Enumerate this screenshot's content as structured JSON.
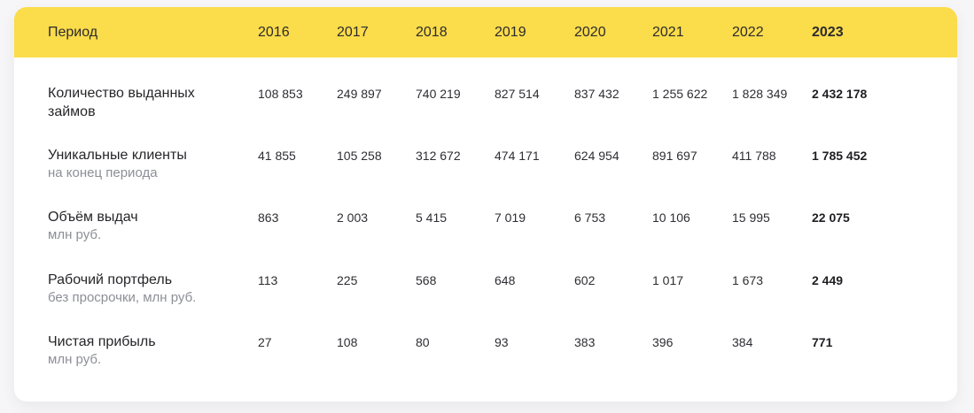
{
  "table": {
    "headers": [
      "Период",
      "2016",
      "2017",
      "2018",
      "2019",
      "2020",
      "2021",
      "2022",
      "2023"
    ],
    "rows": [
      {
        "title_lines": [
          "Количество выданных",
          "займов"
        ],
        "subtitle": "",
        "values": [
          "108 853",
          "249 897",
          "740 219",
          "827 514",
          "837 432",
          "1 255 622",
          "1 828 349",
          "2 432 178"
        ]
      },
      {
        "title_lines": [
          "Уникальные клиенты"
        ],
        "subtitle": "на конец периода",
        "values": [
          "41 855",
          "105 258",
          "312 672",
          "474 171",
          "624 954",
          "891 697",
          "411 788",
          "1 785 452"
        ]
      },
      {
        "title_lines": [
          "Объём выдач"
        ],
        "subtitle": "млн руб.",
        "values": [
          "863",
          "2 003",
          "5 415",
          "7 019",
          "6 753",
          "10 106",
          "15 995",
          "22 075"
        ]
      },
      {
        "title_lines": [
          "Рабочий портфель"
        ],
        "subtitle": "без просрочки, млн руб.",
        "values": [
          "113",
          "225",
          "568",
          "648",
          "602",
          "1 017",
          "1 673",
          "2 449"
        ]
      },
      {
        "title_lines": [
          "Чистая прибыль"
        ],
        "subtitle": "млн руб.",
        "values": [
          "27",
          "108",
          "80",
          "93",
          "383",
          "396",
          "384",
          "771"
        ]
      }
    ]
  },
  "colors": {
    "header_bg": "#fbdc4a",
    "card_bg": "#ffffff",
    "subtitle_text": "#8d8f97"
  }
}
